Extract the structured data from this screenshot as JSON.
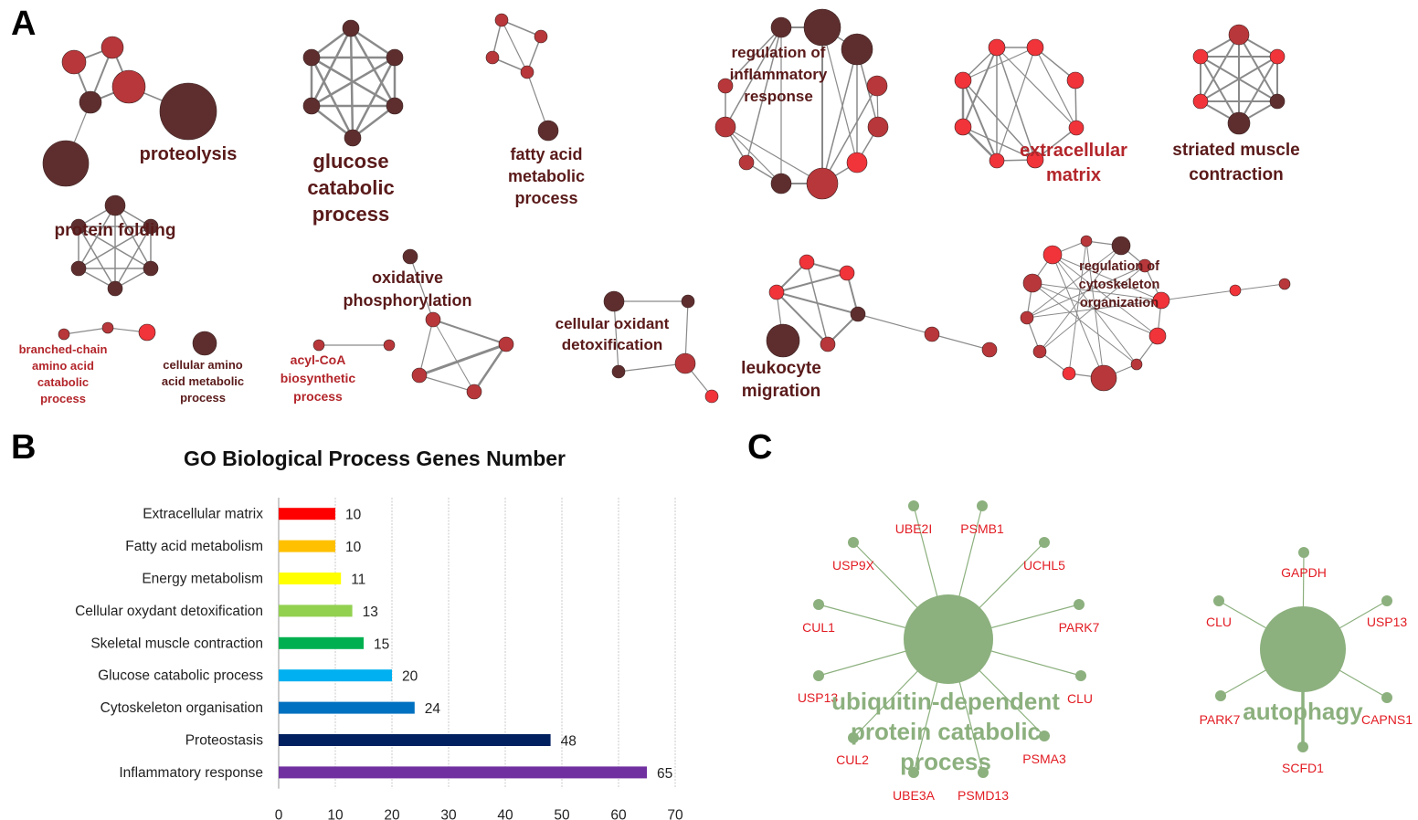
{
  "panels": {
    "a": "A",
    "b": "B",
    "c": "C"
  },
  "panel_a": {
    "clusters": [
      {
        "lines": [
          "proteolysis"
        ]
      },
      {
        "lines": [
          "glucose",
          "catabolic",
          "process"
        ]
      },
      {
        "lines": [
          "fatty acid",
          "metabolic",
          "process"
        ]
      },
      {
        "lines": [
          "regulation of",
          "inflammatory",
          "response"
        ]
      },
      {
        "lines": [
          "extracellular",
          "matrix"
        ]
      },
      {
        "lines": [
          "striated muscle",
          "contraction"
        ]
      },
      {
        "lines": [
          "protein folding"
        ]
      },
      {
        "lines": [
          "oxidative",
          "phosphorylation"
        ]
      },
      {
        "lines": [
          "cellular oxidant",
          "detoxification"
        ]
      },
      {
        "lines": [
          "leukocyte",
          "migration"
        ]
      },
      {
        "lines": [
          "regulation of",
          "cytoskeleton",
          "organization"
        ]
      },
      {
        "lines": [
          "branched-chain",
          "amino acid",
          "catabolic",
          "process"
        ]
      },
      {
        "lines": [
          "cellular amino",
          "acid metabolic",
          "process"
        ]
      },
      {
        "lines": [
          "acyl-CoA",
          "biosynthetic",
          "process"
        ]
      }
    ],
    "colors": {
      "dark": "#5e2e2e",
      "mid": "#b8373a",
      "bright": "#f0343a"
    }
  },
  "chart_data": {
    "type": "bar",
    "orientation": "horizontal",
    "title": "GO Biological Process Genes Number",
    "categories": [
      "Extracellular matrix",
      "Fatty acid metabolism",
      "Energy metabolism",
      "Cellular oxydant detoxification",
      "Skeletal muscle contraction",
      "Glucose catabolic process",
      "Cytoskeleton organisation",
      "Proteostasis",
      "Inflammatory response"
    ],
    "values": [
      10,
      10,
      11,
      13,
      15,
      20,
      24,
      48,
      65
    ],
    "colors": [
      "#ff0000",
      "#ffc000",
      "#ffff00",
      "#92d050",
      "#00b050",
      "#00b0f0",
      "#0070c0",
      "#002060",
      "#7030a0"
    ],
    "xlim": [
      0,
      70
    ],
    "xticks": [
      0,
      10,
      20,
      30,
      40,
      50,
      60,
      70
    ],
    "grid": true,
    "xlabel": "",
    "ylabel": ""
  },
  "panel_c": {
    "networks": [
      {
        "hub": [
          "ubiquitin-dependent",
          "protein catabolic",
          "process"
        ],
        "genes": [
          "UBE2I",
          "PSMB1",
          "USP9X",
          "UCHL5",
          "CUL1",
          "PARK7",
          "USP13",
          "CLU",
          "CUL2",
          "PSMA3",
          "UBE3A",
          "PSMD13"
        ]
      },
      {
        "hub": [
          "autophagy"
        ],
        "genes": [
          "GAPDH",
          "CLU",
          "USP13",
          "PARK7",
          "CAPNS1",
          "SCFD1"
        ]
      }
    ],
    "colors": {
      "node": "#8cb07e",
      "label": "#e21c23"
    }
  }
}
